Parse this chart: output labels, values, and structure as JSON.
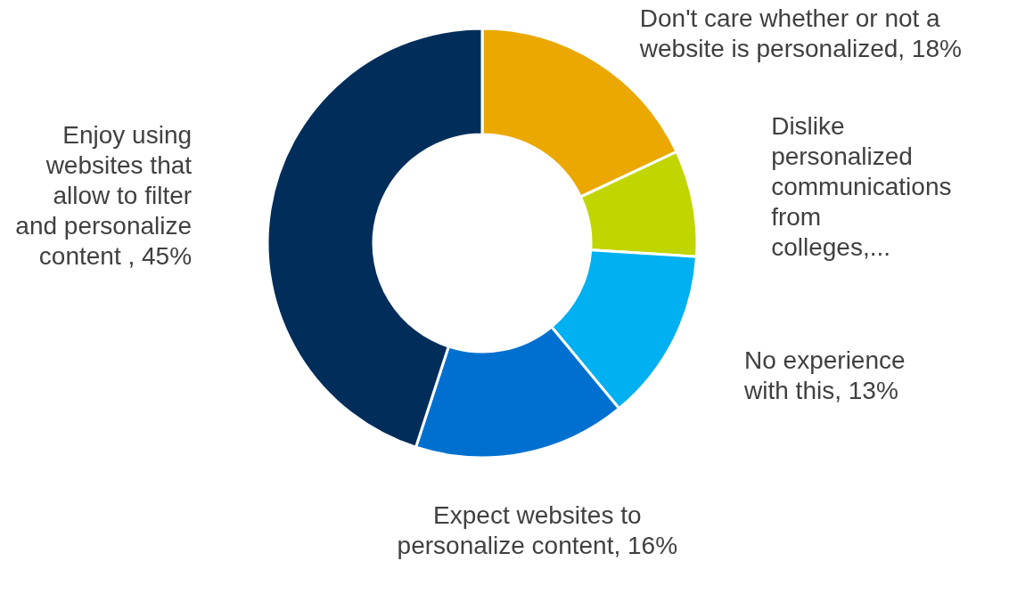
{
  "chart_data": {
    "type": "donut",
    "categories": [
      "Don't care whether or not a website is personalized",
      "Dislike personalized communications from colleges,...",
      "No experience with this",
      "Expect websites to personalize content",
      "Enjoy using websites that allow to filter and personalize content "
    ],
    "values": [
      18,
      8,
      13,
      16,
      45
    ],
    "value_labels": [
      "18%",
      null,
      "13%",
      "16%",
      "45%"
    ],
    "colors": [
      "#eaa800",
      "#c1d500",
      "#00b0f0",
      "#0070d0",
      "#002d5a"
    ]
  }
}
